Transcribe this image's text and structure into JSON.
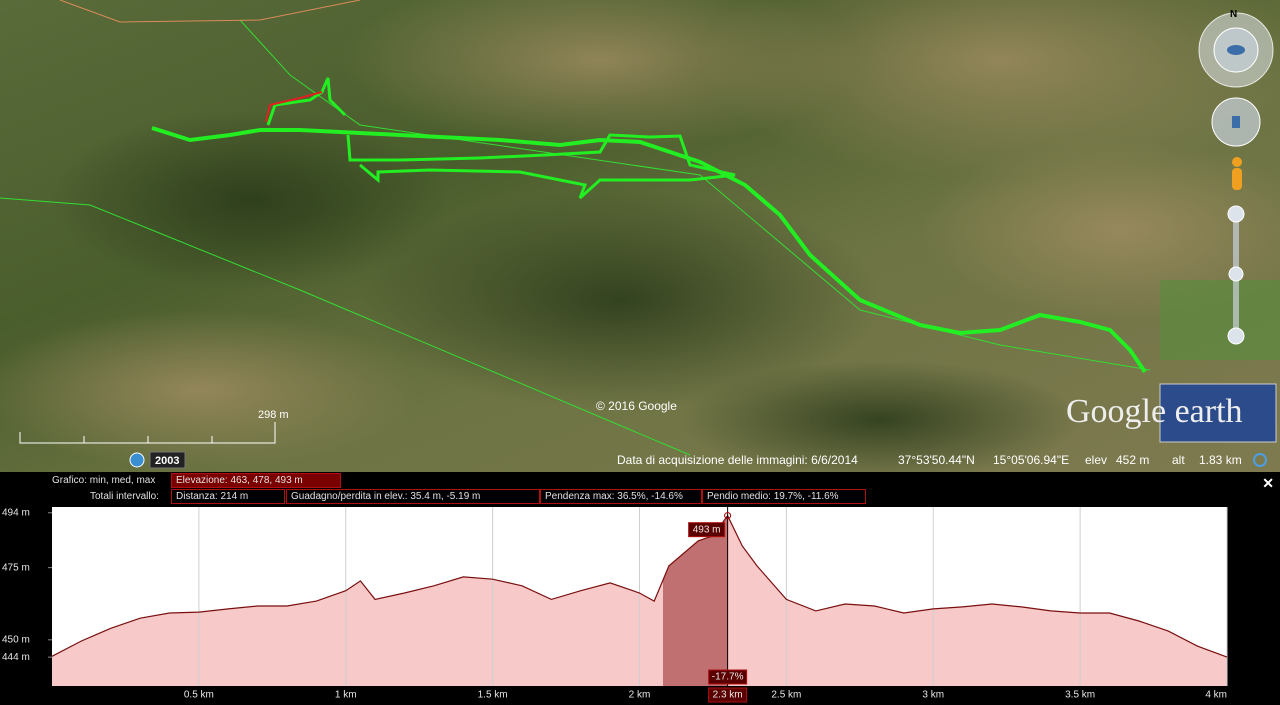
{
  "map": {
    "compass": "N",
    "scale": "298 m",
    "copyright": "© 2016 Google",
    "history_year": "2003",
    "logo": "Google earth",
    "status": {
      "acquisition": "Data di acquisizione delle immagini: 6/6/2014",
      "lat": "37°53'50.44\"N",
      "lon": "15°05'06.94\"E",
      "elev_label": "elev",
      "elev": "452 m",
      "alt_label": "alt",
      "alt": "1.83 km"
    }
  },
  "stats": {
    "row1_label": "Grafico: min, med, max",
    "elevation": "Elevazione: 463, 478, 493 m",
    "row2_label": "Totali intervallo:",
    "distance": "Distanza: 214 m",
    "gain_loss": "Guadagno/perdita in elev.: 35.4 m, -5.19 m",
    "max_slope": "Pendenza max: 36.5%, -14.6%",
    "avg_slope": "Pendio medio: 19.7%, -11.6%"
  },
  "chart_data": {
    "type": "area",
    "color": "#7a0f0f",
    "fill": "#f7c9c9",
    "x": [
      0,
      0.1,
      0.2,
      0.3,
      0.4,
      0.5,
      0.6,
      0.7,
      0.8,
      0.9,
      1.0,
      1.05,
      1.1,
      1.2,
      1.3,
      1.4,
      1.5,
      1.6,
      1.7,
      1.8,
      1.9,
      2.0,
      2.05,
      2.1,
      2.2,
      2.25,
      2.3,
      2.35,
      2.4,
      2.5,
      2.6,
      2.7,
      2.8,
      2.9,
      3.0,
      3.1,
      3.2,
      3.3,
      3.4,
      3.5,
      3.6,
      3.7,
      3.8,
      3.9,
      4.0
    ],
    "values": [
      444.3,
      449.6,
      454,
      457.5,
      459.3,
      459.6,
      460.7,
      461.7,
      461.7,
      463.4,
      467,
      470.4,
      464,
      466.2,
      468.7,
      471.8,
      471,
      468.7,
      464,
      467,
      469.7,
      466.2,
      463.4,
      475.6,
      484.3,
      486,
      493,
      482.5,
      475.6,
      464,
      460,
      462.4,
      461.7,
      459.3,
      460.7,
      461.4,
      462.4,
      461.4,
      460,
      459.3,
      459.3,
      456.5,
      453,
      447.8,
      444
    ],
    "xlim": [
      0,
      4
    ],
    "ylim": [
      434,
      496
    ],
    "xticks": [
      {
        "value": 0.5,
        "label": "0.5 km"
      },
      {
        "value": 1,
        "label": "1 km"
      },
      {
        "value": 1.5,
        "label": "1.5 km"
      },
      {
        "value": 2,
        "label": "2 km"
      },
      {
        "value": 2.5,
        "label": "2.5 km"
      },
      {
        "value": 3,
        "label": "3 km"
      },
      {
        "value": 3.5,
        "label": "3.5 km"
      },
      {
        "value": 4,
        "label": "4 km"
      }
    ],
    "yticks": [
      {
        "value": 494,
        "label": "494 m"
      },
      {
        "value": 475,
        "label": "475 m"
      },
      {
        "value": 450,
        "label": "450 m"
      },
      {
        "value": 444,
        "label": "444 m"
      }
    ],
    "grid": true,
    "selection": [
      2.08,
      2.3
    ],
    "cursor": {
      "x": 2.3,
      "x_label": "2.3 km",
      "elevation": 493,
      "elevation_label": "493 m",
      "slope": -17.7,
      "slope_label": "-17.7%"
    }
  }
}
